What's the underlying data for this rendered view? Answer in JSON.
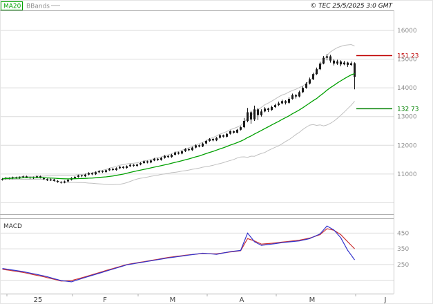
{
  "header": {
    "copyright": "© TEC 25/5/2025 3:0 GMT"
  },
  "colors": {
    "resistance": "#c00000",
    "support": "#008000",
    "ma": "#00a000",
    "band": "#bfbfbf",
    "candle": "#1b1b1b",
    "grid": "#dcdcdc",
    "axis_text": "#909090",
    "month_text": "#444444",
    "frame": "#b0b0b0",
    "macd_fast": "#3333cc",
    "macd_slow": "#cc3333"
  },
  "chart_data": [
    {
      "type": "candlestick",
      "panel": "price",
      "title": "",
      "overlays": [
        {
          "name": "MA20"
        },
        {
          "name": "BBands"
        }
      ],
      "ylim": [
        9600,
        16700
      ],
      "y_ticks": [
        16000,
        15000,
        14000,
        13000,
        12000,
        11000
      ],
      "grid_extra": [
        10000
      ],
      "levels": [
        {
          "label": "151 23",
          "value": 15123,
          "color_key": "resistance"
        },
        {
          "label": "132 73",
          "value": 13273,
          "color_key": "support"
        }
      ],
      "x_months": [
        {
          "label": "25",
          "x": 55
        },
        {
          "label": "F",
          "x": 152
        },
        {
          "label": "M",
          "x": 250
        },
        {
          "label": "A",
          "x": 350
        },
        {
          "label": "M",
          "x": 452
        },
        {
          "label": "J",
          "x": 558
        }
      ],
      "month_tick_x": [
        10,
        105,
        200,
        300,
        400,
        515
      ],
      "ohlc": [
        [
          10800,
          10860,
          10770,
          10830
        ],
        [
          10830,
          10890,
          10810,
          10860
        ],
        [
          10860,
          10885,
          10815,
          10840
        ],
        [
          10840,
          10910,
          10820,
          10880
        ],
        [
          10880,
          10905,
          10830,
          10855
        ],
        [
          10855,
          10915,
          10830,
          10890
        ],
        [
          10890,
          10945,
          10865,
          10915
        ],
        [
          10915,
          10940,
          10855,
          10880
        ],
        [
          10880,
          10905,
          10825,
          10850
        ],
        [
          10850,
          10910,
          10825,
          10885
        ],
        [
          10885,
          10950,
          10860,
          10920
        ],
        [
          10920,
          10945,
          10845,
          10870
        ],
        [
          10870,
          10895,
          10795,
          10820
        ],
        [
          10820,
          10845,
          10755,
          10780
        ],
        [
          10780,
          10840,
          10755,
          10810
        ],
        [
          10810,
          10835,
          10735,
          10760
        ],
        [
          10760,
          10785,
          10695,
          10720
        ],
        [
          10720,
          10750,
          10665,
          10700
        ],
        [
          10700,
          10770,
          10675,
          10740
        ],
        [
          10740,
          10830,
          10715,
          10800
        ],
        [
          10800,
          10890,
          10775,
          10860
        ],
        [
          10860,
          10930,
          10835,
          10900
        ],
        [
          10900,
          10980,
          10875,
          10950
        ],
        [
          10950,
          10975,
          10890,
          10920
        ],
        [
          10920,
          11010,
          10895,
          10980
        ],
        [
          10980,
          11060,
          10955,
          11030
        ],
        [
          11030,
          11055,
          10960,
          10990
        ],
        [
          10990,
          11090,
          10965,
          11060
        ],
        [
          11060,
          11130,
          11035,
          11100
        ],
        [
          11100,
          11125,
          11040,
          11070
        ],
        [
          11070,
          11160,
          11045,
          11130
        ],
        [
          11130,
          11210,
          11105,
          11180
        ],
        [
          11180,
          11205,
          11110,
          11140
        ],
        [
          11140,
          11230,
          11115,
          11200
        ],
        [
          11200,
          11280,
          11175,
          11250
        ],
        [
          11250,
          11275,
          11180,
          11210
        ],
        [
          11210,
          11300,
          11185,
          11270
        ],
        [
          11270,
          11350,
          11245,
          11320
        ],
        [
          11320,
          11345,
          11250,
          11280
        ],
        [
          11280,
          11360,
          11255,
          11330
        ],
        [
          11330,
          11410,
          11305,
          11380
        ],
        [
          11380,
          11470,
          11355,
          11440
        ],
        [
          11440,
          11465,
          11370,
          11400
        ],
        [
          11400,
          11500,
          11375,
          11470
        ],
        [
          11470,
          11560,
          11445,
          11530
        ],
        [
          11530,
          11555,
          11460,
          11490
        ],
        [
          11490,
          11590,
          11465,
          11560
        ],
        [
          11560,
          11660,
          11535,
          11630
        ],
        [
          11630,
          11655,
          11560,
          11590
        ],
        [
          11590,
          11700,
          11565,
          11670
        ],
        [
          11670,
          11780,
          11645,
          11750
        ],
        [
          11750,
          11775,
          11680,
          11710
        ],
        [
          11710,
          11820,
          11685,
          11790
        ],
        [
          11790,
          11900,
          11765,
          11870
        ],
        [
          11870,
          11895,
          11800,
          11830
        ],
        [
          11830,
          11950,
          11805,
          11920
        ],
        [
          11920,
          12030,
          11895,
          12000
        ],
        [
          12000,
          12025,
          11930,
          11960
        ],
        [
          11960,
          12090,
          11935,
          12060
        ],
        [
          12060,
          12180,
          12035,
          12150
        ],
        [
          12150,
          12250,
          12125,
          12220
        ],
        [
          12220,
          12245,
          12140,
          12170
        ],
        [
          12170,
          12290,
          12145,
          12260
        ],
        [
          12260,
          12380,
          12235,
          12350
        ],
        [
          12350,
          12375,
          12270,
          12300
        ],
        [
          12300,
          12430,
          12275,
          12400
        ],
        [
          12400,
          12520,
          12375,
          12490
        ],
        [
          12490,
          12515,
          12410,
          12440
        ],
        [
          12440,
          12570,
          12415,
          12540
        ],
        [
          12540,
          12660,
          12515,
          12630
        ],
        [
          12630,
          12950,
          12600,
          12850
        ],
        [
          12850,
          13300,
          12800,
          13150
        ],
        [
          13150,
          13200,
          12750,
          12900
        ],
        [
          12900,
          13380,
          12850,
          13250
        ],
        [
          13250,
          13300,
          12880,
          13050
        ],
        [
          13050,
          13250,
          13000,
          13180
        ],
        [
          13180,
          13330,
          13150,
          13280
        ],
        [
          13280,
          13310,
          13160,
          13230
        ],
        [
          13230,
          13380,
          13200,
          13330
        ],
        [
          13330,
          13450,
          13300,
          13400
        ],
        [
          13400,
          13520,
          13370,
          13460
        ],
        [
          13460,
          13590,
          13430,
          13540
        ],
        [
          13540,
          13570,
          13420,
          13480
        ],
        [
          13480,
          13670,
          13450,
          13620
        ],
        [
          13620,
          13800,
          13590,
          13750
        ],
        [
          13750,
          13780,
          13630,
          13700
        ],
        [
          13700,
          13900,
          13670,
          13850
        ],
        [
          13850,
          14050,
          13820,
          14000
        ],
        [
          14000,
          14200,
          13970,
          14150
        ],
        [
          14150,
          14360,
          14120,
          14300
        ],
        [
          14300,
          14530,
          14270,
          14480
        ],
        [
          14480,
          14710,
          14450,
          14650
        ],
        [
          14650,
          14910,
          14620,
          14850
        ],
        [
          14850,
          15110,
          14820,
          15050
        ],
        [
          15050,
          15180,
          14960,
          15100
        ],
        [
          15100,
          15150,
          14880,
          14950
        ],
        [
          14950,
          15000,
          14780,
          14850
        ],
        [
          14850,
          14980,
          14800,
          14920
        ],
        [
          14920,
          14960,
          14750,
          14820
        ],
        [
          14820,
          14940,
          14790,
          14880
        ],
        [
          14880,
          14910,
          14730,
          14800
        ],
        [
          14800,
          14920,
          14770,
          14860
        ],
        [
          14860,
          14890,
          13950,
          14380
        ]
      ]
    },
    {
      "type": "line",
      "panel": "macd",
      "label": "MACD",
      "ylim": [
        65,
        535
      ],
      "y_ticks": [
        450,
        350,
        250
      ],
      "grid_extra": [
        150
      ],
      "series": [
        {
          "name": "macd",
          "color_key": "macd_fast",
          "points": [
            [
              0,
              225
            ],
            [
              6,
              205
            ],
            [
              12,
              178
            ],
            [
              17,
              148
            ],
            [
              20,
              140
            ],
            [
              24,
              168
            ],
            [
              30,
              208
            ],
            [
              36,
              248
            ],
            [
              42,
              270
            ],
            [
              48,
              292
            ],
            [
              54,
              310
            ],
            [
              58,
              322
            ],
            [
              62,
              315
            ],
            [
              66,
              332
            ],
            [
              69,
              340
            ],
            [
              71,
              450
            ],
            [
              73,
              395
            ],
            [
              75,
              372
            ],
            [
              78,
              380
            ],
            [
              82,
              392
            ],
            [
              86,
              400
            ],
            [
              89,
              415
            ],
            [
              92,
              445
            ],
            [
              94,
              495
            ],
            [
              96,
              470
            ],
            [
              98,
              420
            ],
            [
              100,
              340
            ],
            [
              102,
              280
            ]
          ]
        },
        {
          "name": "signal",
          "color_key": "macd_slow",
          "points": [
            [
              0,
              220
            ],
            [
              6,
              200
            ],
            [
              12,
              172
            ],
            [
              17,
              145
            ],
            [
              20,
              148
            ],
            [
              24,
              172
            ],
            [
              30,
              212
            ],
            [
              36,
              250
            ],
            [
              42,
              272
            ],
            [
              48,
              295
            ],
            [
              54,
              312
            ],
            [
              58,
              320
            ],
            [
              62,
              318
            ],
            [
              66,
              330
            ],
            [
              69,
              338
            ],
            [
              71,
              415
            ],
            [
              73,
              400
            ],
            [
              75,
              380
            ],
            [
              78,
              385
            ],
            [
              82,
              395
            ],
            [
              86,
              405
            ],
            [
              89,
              418
            ],
            [
              92,
              440
            ],
            [
              94,
              478
            ],
            [
              96,
              468
            ],
            [
              98,
              440
            ],
            [
              100,
              395
            ],
            [
              102,
              350
            ]
          ]
        }
      ]
    }
  ]
}
